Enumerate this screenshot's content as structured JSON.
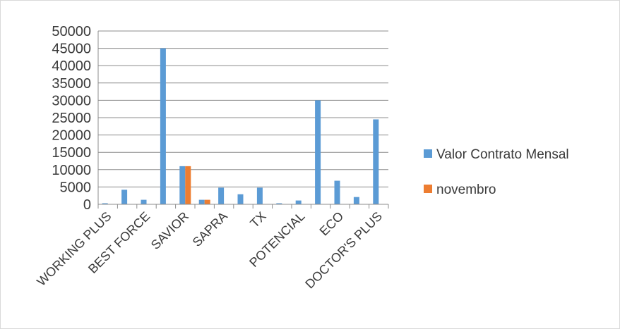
{
  "chart_data": {
    "type": "bar",
    "title": "",
    "xlabel": "",
    "ylabel": "",
    "ylim": [
      0,
      50000
    ],
    "y_ticks": [
      0,
      5000,
      10000,
      15000,
      20000,
      25000,
      30000,
      35000,
      40000,
      45000,
      50000
    ],
    "grid": true,
    "legend_position": "right",
    "categories": [
      "WORKING PLUS",
      "",
      "BEST FORCE",
      "",
      "SAVIOR",
      "",
      "SAPRA",
      "",
      "TX",
      "",
      "POTENCIAL",
      "",
      "ECO",
      "",
      "DOCTOR'S PLUS"
    ],
    "series": [
      {
        "name": "Valor Contrato Mensal",
        "color": "#5b9bd5",
        "values": [
          300,
          4200,
          1300,
          45000,
          11000,
          1300,
          4800,
          2900,
          4800,
          300,
          1100,
          30000,
          6800,
          2100,
          24500
        ]
      },
      {
        "name": "novembro",
        "color": "#ed7d31",
        "values": [
          0,
          0,
          0,
          0,
          11000,
          1300,
          0,
          0,
          0,
          0,
          0,
          0,
          0,
          0,
          0
        ]
      }
    ]
  }
}
